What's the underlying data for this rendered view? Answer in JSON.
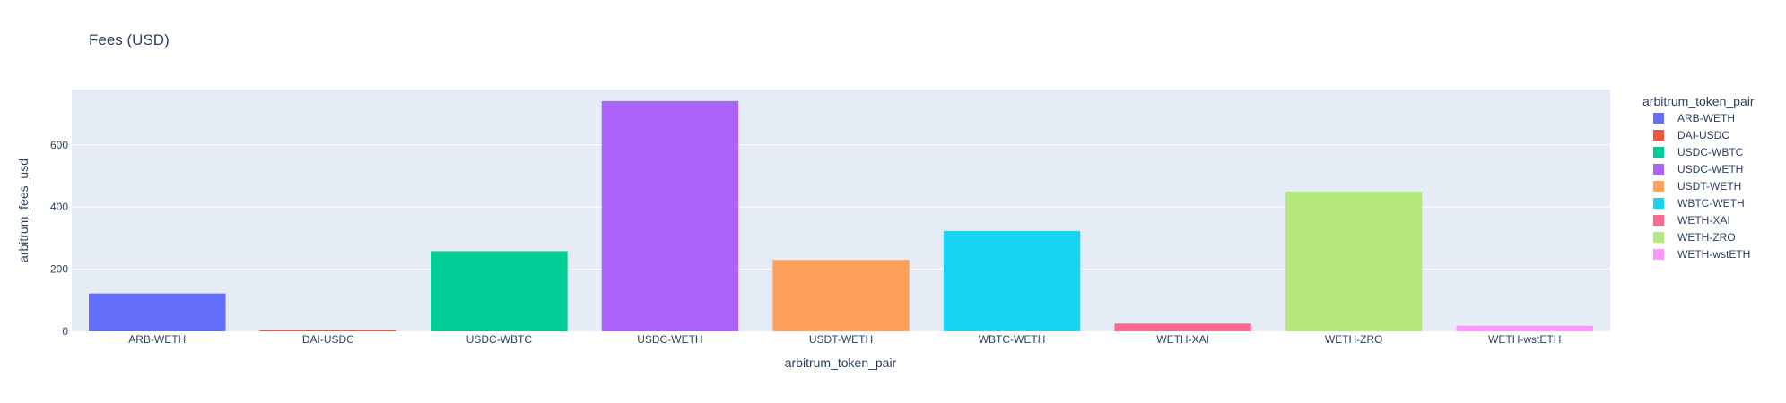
{
  "chart_data": {
    "type": "bar",
    "title": "Fees (USD)",
    "xlabel": "arbitrum_token_pair",
    "ylabel": "arbitrum_fees_usd",
    "categories": [
      "ARB-WETH",
      "DAI-USDC",
      "USDC-WBTC",
      "USDC-WETH",
      "USDT-WETH",
      "WBTC-WETH",
      "WETH-XAI",
      "WETH-ZRO",
      "WETH-wstETH"
    ],
    "values": [
      122,
      5,
      258,
      741,
      230,
      323,
      25,
      450,
      18
    ],
    "colors": [
      "#636efa",
      "#EF553B",
      "#00cc96",
      "#ab63fa",
      "#FFA15A",
      "#19d3f3",
      "#FF6692",
      "#B6E880",
      "#FF97FF"
    ],
    "ylim": [
      0,
      778
    ],
    "yticks": [
      0,
      200,
      400,
      600
    ],
    "grid": true,
    "legend": {
      "title": "arbitrum_token_pair",
      "placement": "right"
    }
  }
}
